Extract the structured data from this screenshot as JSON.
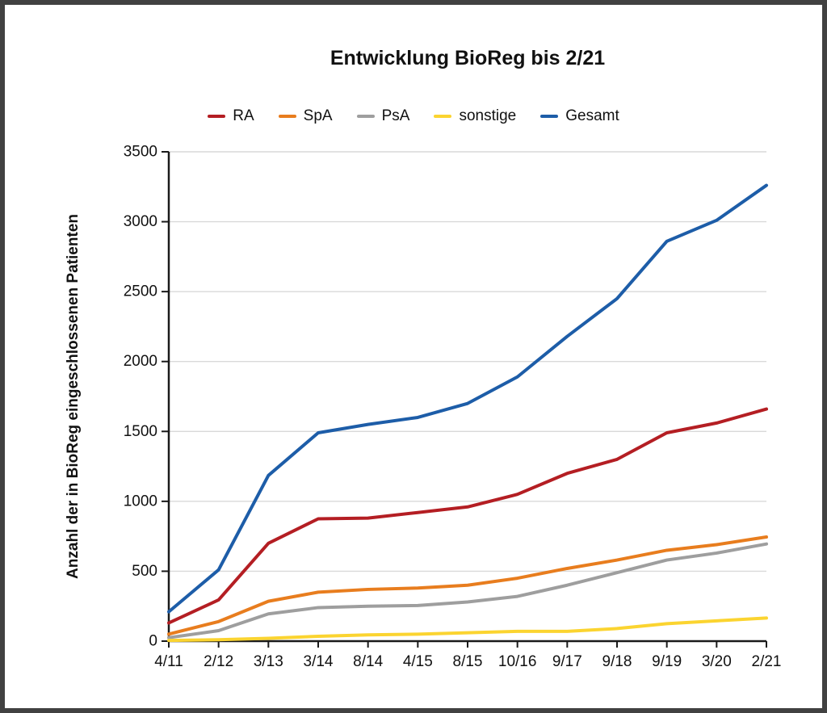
{
  "frame": {
    "border_color": "#414141",
    "background_color": "#ffffff"
  },
  "chart_data": {
    "type": "line",
    "title": "Entwicklung BioReg bis 2/21",
    "xlabel": "",
    "ylabel": "Anzahl der in BioReg eingeschlossenen Patienten",
    "categories": [
      "4/11",
      "2/12",
      "3/13",
      "3/14",
      "8/14",
      "4/15",
      "8/15",
      "10/16",
      "9/17",
      "9/18",
      "9/19",
      "3/20",
      "2/21"
    ],
    "ylim": [
      0,
      3500
    ],
    "y_ticks": [
      0,
      500,
      1000,
      1500,
      2000,
      2500,
      3000,
      3500
    ],
    "grid": "horizontal",
    "legend_position": "top-center",
    "axis_color": "#1a1a1a",
    "grid_color": "#d9d9d9",
    "text_color": "#111111",
    "series": [
      {
        "name": "RA",
        "color": "#b41e23",
        "values": [
          130,
          295,
          700,
          875,
          880,
          920,
          960,
          1050,
          1200,
          1300,
          1490,
          1560,
          1660
        ]
      },
      {
        "name": "SpA",
        "color": "#e87d1e",
        "values": [
          50,
          140,
          285,
          350,
          370,
          380,
          400,
          450,
          520,
          580,
          650,
          690,
          745
        ]
      },
      {
        "name": "PsA",
        "color": "#9e9e9e",
        "values": [
          25,
          75,
          195,
          240,
          250,
          255,
          280,
          320,
          400,
          490,
          580,
          630,
          695
        ]
      },
      {
        "name": "sonstige",
        "color": "#fbd430",
        "values": [
          5,
          10,
          20,
          35,
          45,
          50,
          60,
          70,
          70,
          90,
          125,
          145,
          165
        ]
      },
      {
        "name": "Gesamt",
        "color": "#1d5da8",
        "values": [
          210,
          510,
          1185,
          1490,
          1550,
          1600,
          1700,
          1890,
          2180,
          2450,
          2860,
          3010,
          3260
        ]
      }
    ]
  }
}
